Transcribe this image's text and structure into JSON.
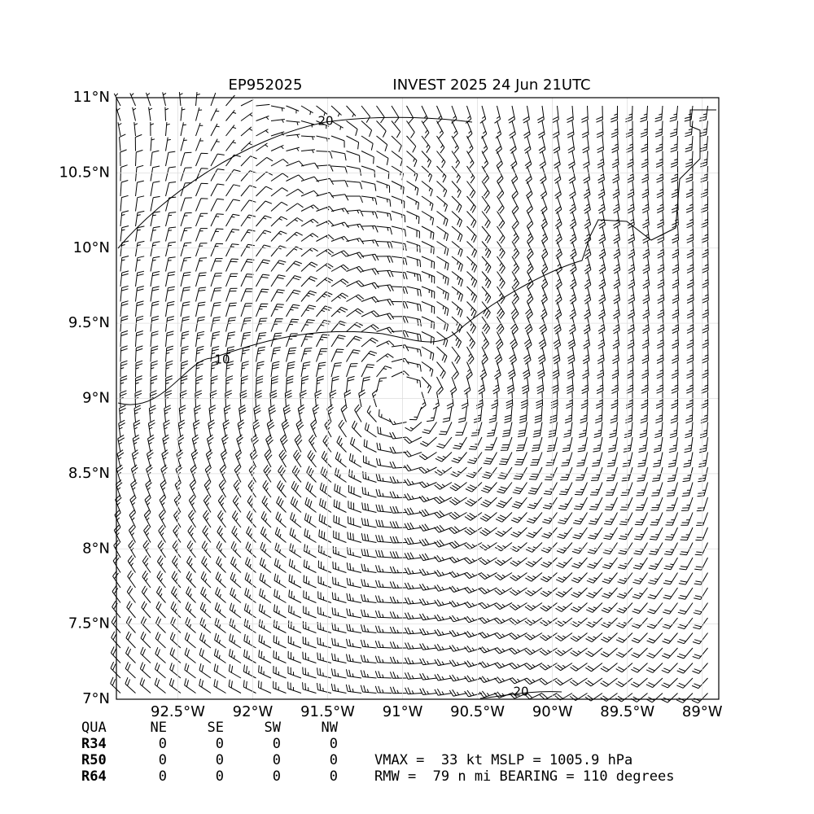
{
  "chart_data": {
    "type": "barbs",
    "title": "EP952025",
    "subtitle": "INVEST 2025 24 Jun 21UTC",
    "xlim": [
      -92.91,
      -88.89
    ],
    "ylim": [
      7,
      11
    ],
    "xticks": [
      {
        "value": -92.5,
        "label": "92.5°W"
      },
      {
        "value": -92,
        "label": "92°W"
      },
      {
        "value": -91.5,
        "label": "91.5°W"
      },
      {
        "value": -91,
        "label": "91°W"
      },
      {
        "value": -90.5,
        "label": "90.5°W"
      },
      {
        "value": -90,
        "label": "90°W"
      },
      {
        "value": -89.5,
        "label": "89.5°W"
      },
      {
        "value": -89,
        "label": "89°W"
      }
    ],
    "yticks": [
      {
        "value": 7,
        "label": "7°N"
      },
      {
        "value": 7.5,
        "label": "7.5°N"
      },
      {
        "value": 8,
        "label": "8°N"
      },
      {
        "value": 8.5,
        "label": "8.5°N"
      },
      {
        "value": 9,
        "label": "9°N"
      },
      {
        "value": 9.5,
        "label": "9.5°N"
      },
      {
        "value": 10,
        "label": "10°N"
      },
      {
        "value": 10.5,
        "label": "10.5°N"
      },
      {
        "value": 11,
        "label": "11°N"
      }
    ],
    "grid": true,
    "contour_labels": [
      "20",
      "10",
      "20"
    ],
    "table": {
      "header": [
        "QUA",
        "NE",
        "SE",
        "SW",
        "NW"
      ],
      "rows": [
        {
          "name": "R34",
          "values": [
            0,
            0,
            0,
            0
          ]
        },
        {
          "name": "R50",
          "values": [
            0,
            0,
            0,
            0
          ]
        },
        {
          "name": "R64",
          "values": [
            0,
            0,
            0,
            0
          ]
        }
      ]
    },
    "info": [
      "VMAX =  33 kt MSLP = 1005.9 hPa",
      "RMW =  79 n mi BEARING = 110 degrees"
    ]
  }
}
